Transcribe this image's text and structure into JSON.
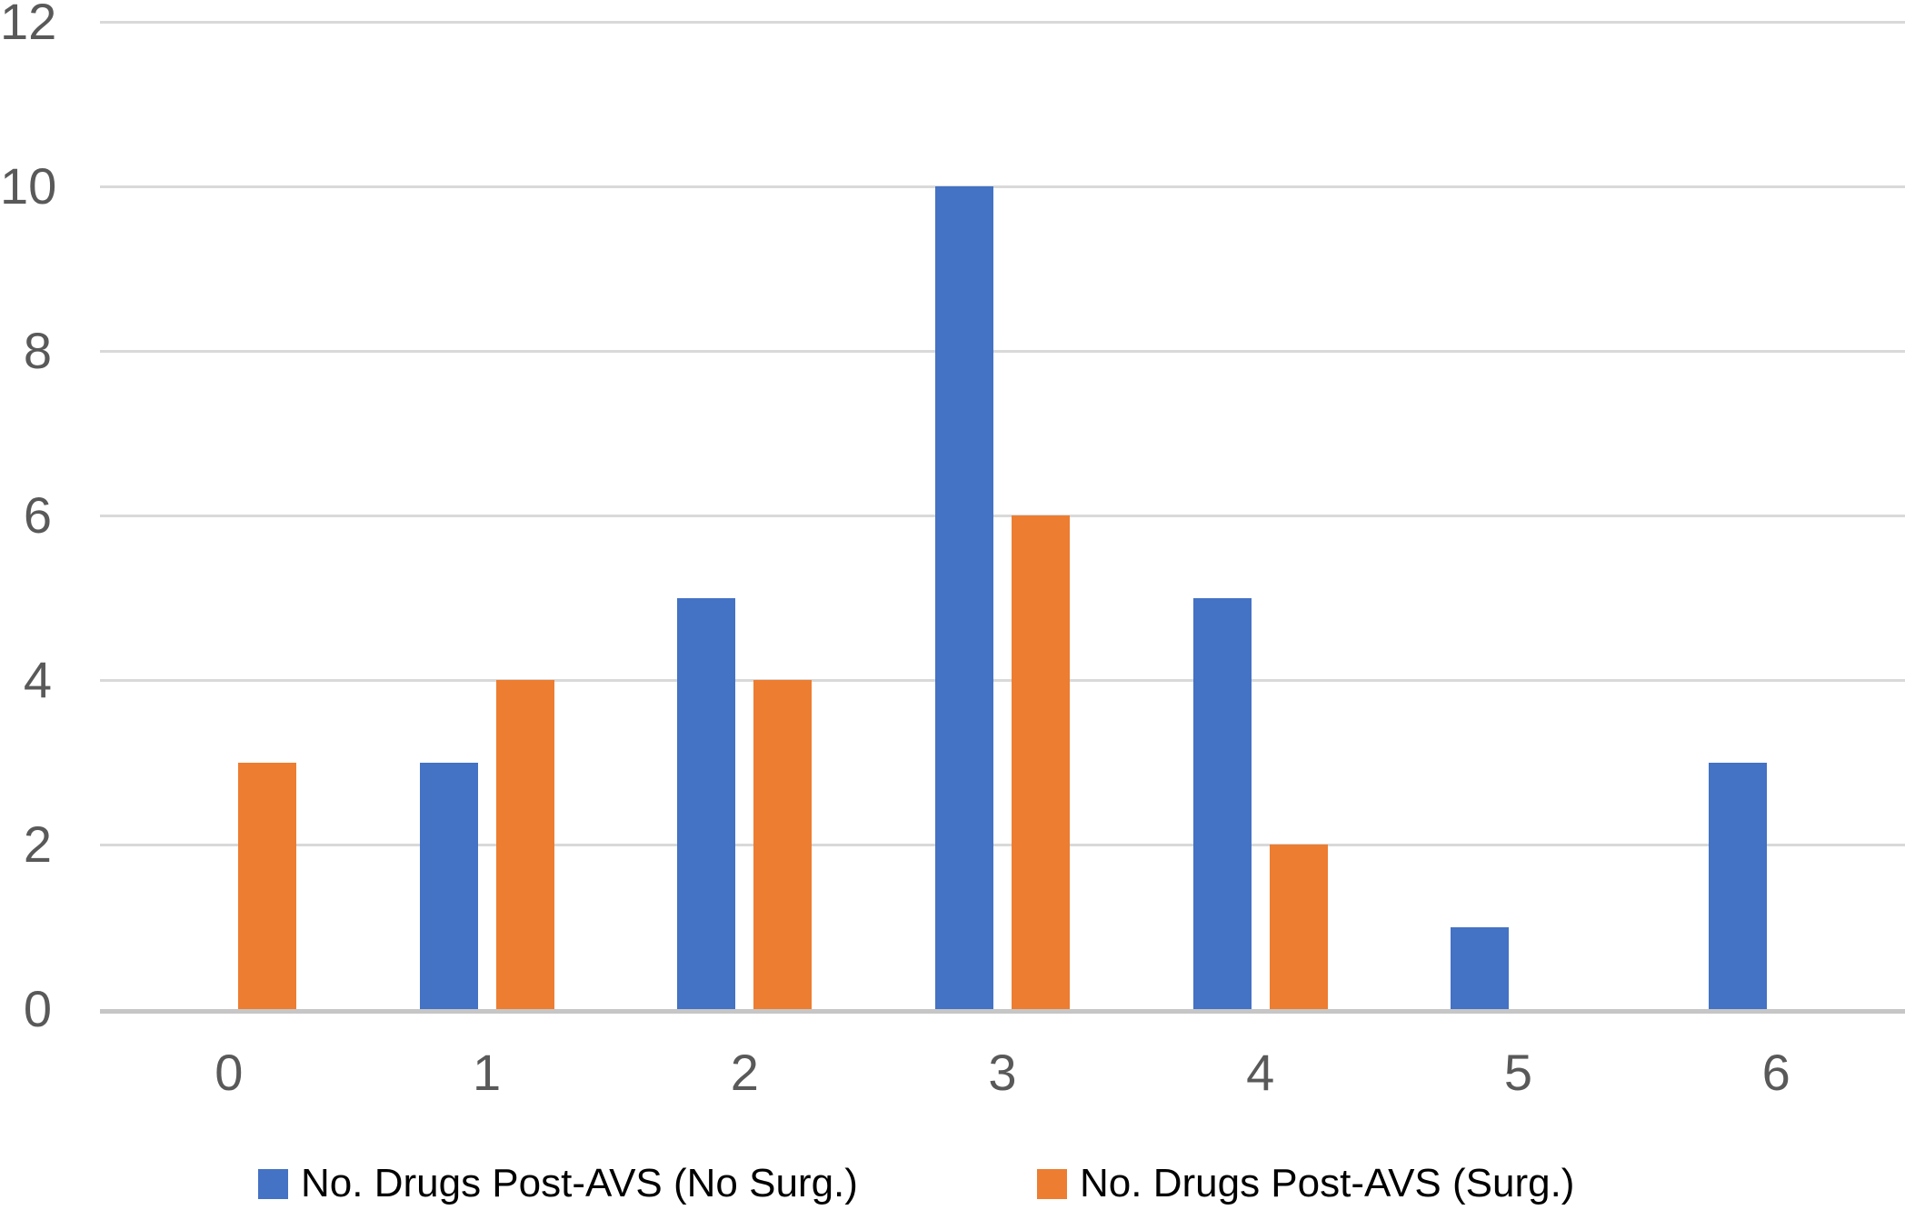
{
  "chart_data": {
    "type": "bar",
    "title": "",
    "xlabel": "",
    "ylabel": "",
    "categories": [
      "0",
      "1",
      "2",
      "3",
      "4",
      "5",
      "6"
    ],
    "series": [
      {
        "name": "No. Drugs Post-AVS (No Surg.)",
        "color": "#4472C4",
        "values": [
          0,
          3,
          5,
          10,
          5,
          1,
          3
        ]
      },
      {
        "name": "No. Drugs Post-AVS (Surg.)",
        "color": "#ED7D31",
        "values": [
          3,
          4,
          4,
          6,
          2,
          0,
          0
        ]
      }
    ],
    "ylim": [
      0,
      12
    ],
    "yticks": [
      0,
      2,
      4,
      6,
      8,
      10,
      12
    ],
    "grid": true,
    "legend_position": "bottom"
  },
  "colors": {
    "background": "#FFFFFF",
    "gridline": "#D9D9D9",
    "axis_line": "#C6C6C6",
    "axis_text": "#595959",
    "legend_text": "#000000"
  }
}
